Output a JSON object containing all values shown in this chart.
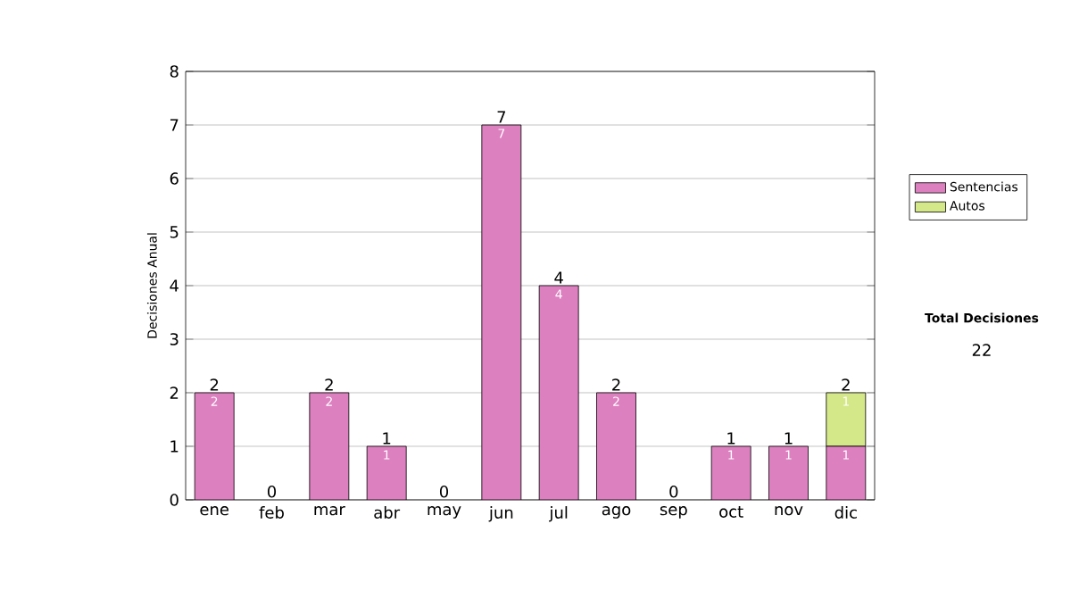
{
  "chart_data": {
    "type": "bar",
    "stacked": true,
    "ylabel": "Decisiones Anual",
    "categories": [
      "ene",
      "feb",
      "mar",
      "abr",
      "may",
      "jun",
      "jul",
      "ago",
      "sep",
      "oct",
      "nov",
      "dic"
    ],
    "series": [
      {
        "name": "Sentencias",
        "color": "#dd80c0",
        "values": [
          2,
          0,
          2,
          1,
          0,
          7,
          4,
          2,
          0,
          1,
          1,
          1
        ],
        "value_labels": [
          "2",
          null,
          "2",
          "1",
          null,
          "7",
          "4",
          "2",
          null,
          "1",
          "1",
          "1"
        ]
      },
      {
        "name": "Autos",
        "color": "#d4e88a",
        "values": [
          0,
          0,
          0,
          0,
          0,
          0,
          0,
          0,
          0,
          0,
          0,
          1
        ],
        "value_labels": [
          null,
          null,
          null,
          null,
          null,
          null,
          null,
          null,
          null,
          null,
          null,
          "1"
        ]
      }
    ],
    "totals": [
      "2",
      "0",
      "2",
      "1",
      "0",
      "7",
      "4",
      "2",
      "0",
      "1",
      "1",
      "2"
    ],
    "ylim": [
      0,
      8
    ],
    "yticks": [
      0,
      1,
      2,
      3,
      4,
      5,
      6,
      7,
      8
    ],
    "grid": "y",
    "legend": "right",
    "annotations": [
      "Total Decisiones",
      "22"
    ]
  }
}
